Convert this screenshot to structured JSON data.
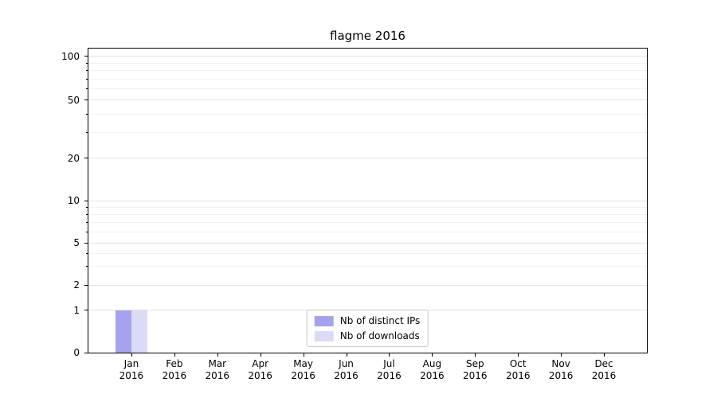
{
  "chart_data": {
    "type": "bar",
    "title": "flagme 2016",
    "year_label": "2016",
    "categories": [
      "Jan",
      "Feb",
      "Mar",
      "Apr",
      "May",
      "Jun",
      "Jul",
      "Aug",
      "Sep",
      "Oct",
      "Nov",
      "Dec"
    ],
    "series": [
      {
        "name": "Nb of distinct IPs",
        "color": "#a4a4ee",
        "values": [
          1,
          0,
          0,
          0,
          0,
          0,
          0,
          0,
          0,
          0,
          0,
          0
        ]
      },
      {
        "name": "Nb of downloads",
        "color": "#dbdbf8",
        "values": [
          1,
          0,
          0,
          0,
          0,
          0,
          0,
          0,
          0,
          0,
          0,
          0
        ]
      }
    ],
    "y_axis": {
      "scale": "symlog",
      "ticks": [
        0,
        1,
        2,
        5,
        10,
        20,
        50,
        100
      ],
      "minor_ticks": [
        3,
        4,
        6,
        7,
        8,
        9,
        30,
        40,
        60,
        70,
        80,
        90
      ],
      "ylim": [
        0,
        120
      ]
    },
    "legend": {
      "position": "lower center"
    },
    "grid": true
  }
}
